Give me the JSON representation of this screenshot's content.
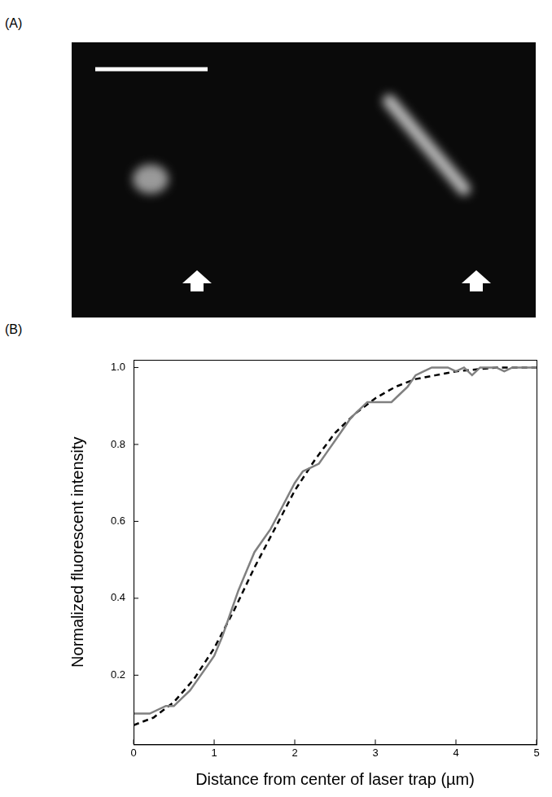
{
  "image_panel": {
    "label": "(A)"
  },
  "chart_data": {
    "type": "line",
    "panel_label": "(B)",
    "x_label": "Distance from center of laser trap (µm)",
    "y_label": "Normalized fluorescent intensity",
    "xlim": [
      0,
      5
    ],
    "xticks": [
      0,
      1,
      2,
      3,
      4,
      5
    ],
    "ylim": [
      0.02,
      1.02
    ],
    "yticks": [
      0.2,
      0.4,
      0.6,
      0.8,
      {
        "value": 1,
        "label": "1.0"
      }
    ],
    "grid": false,
    "series": [
      {
        "color": "#808080",
        "line_style": "solid",
        "marker": "none",
        "x": [
          0,
          0.2,
          0.4,
          0.5,
          0.6,
          0.7,
          0.8,
          0.9,
          1.0,
          1.1,
          1.2,
          1.3,
          1.4,
          1.5,
          1.6,
          1.7,
          1.8,
          1.9,
          2.0,
          2.1,
          2.2,
          2.3,
          2.4,
          2.5,
          2.6,
          2.7,
          2.8,
          2.9,
          3.0,
          3.1,
          3.2,
          3.3,
          3.4,
          3.5,
          3.6,
          3.7,
          3.8,
          3.9,
          4.0,
          4.1,
          4.2,
          4.3,
          4.4,
          4.5,
          4.6,
          4.7,
          4.8,
          5.0
        ],
        "values": [
          0.1,
          0.1,
          0.12,
          0.12,
          0.14,
          0.16,
          0.19,
          0.22,
          0.25,
          0.3,
          0.36,
          0.42,
          0.47,
          0.52,
          0.55,
          0.58,
          0.62,
          0.66,
          0.7,
          0.73,
          0.74,
          0.75,
          0.78,
          0.81,
          0.84,
          0.87,
          0.89,
          0.91,
          0.91,
          0.91,
          0.91,
          0.93,
          0.95,
          0.98,
          0.99,
          1.0,
          1.0,
          1.0,
          0.99,
          1.0,
          0.98,
          1.0,
          1.0,
          1.0,
          0.99,
          1.0,
          1.0,
          1.0
        ]
      },
      {
        "color": "#000000",
        "line_style": "dashed",
        "marker": "none",
        "x": [
          0,
          0.25,
          0.5,
          0.75,
          1.0,
          1.25,
          1.5,
          1.75,
          2.0,
          2.25,
          2.5,
          2.75,
          3.0,
          3.25,
          3.5,
          3.75,
          4.0,
          4.5,
          5.0
        ],
        "values": [
          0.07,
          0.09,
          0.13,
          0.19,
          0.27,
          0.37,
          0.48,
          0.58,
          0.68,
          0.76,
          0.83,
          0.88,
          0.92,
          0.95,
          0.97,
          0.98,
          0.99,
          1.0,
          1.0
        ]
      }
    ]
  }
}
